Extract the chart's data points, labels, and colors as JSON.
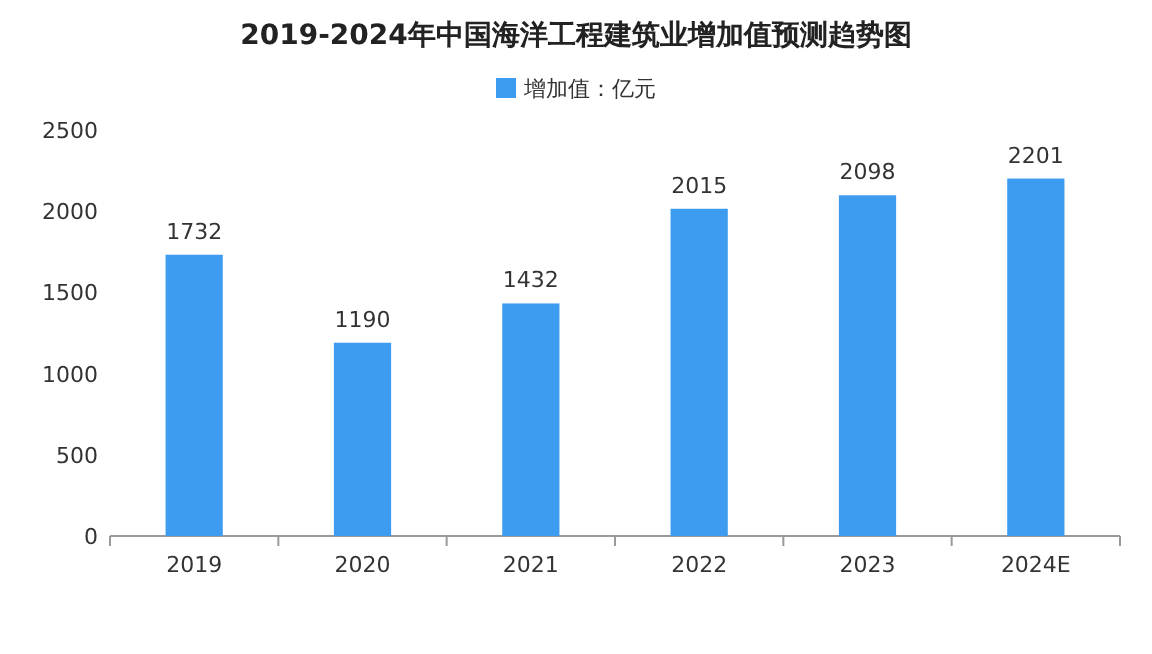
{
  "chart_data": {
    "type": "bar",
    "title": "2019-2024年中国海洋工程建筑业增加值预测趋势图",
    "categories": [
      "2019",
      "2020",
      "2021",
      "2022",
      "2023",
      "2024E"
    ],
    "series": [
      {
        "name": "增加值：亿元",
        "color": "#3d9cf0",
        "values": [
          1732,
          1190,
          1432,
          2015,
          2098,
          2201
        ]
      }
    ],
    "ylim": [
      0,
      2500
    ],
    "yticks": [
      0,
      500,
      1000,
      1500,
      2000,
      2500
    ],
    "data_labels": true,
    "legend": "top"
  }
}
